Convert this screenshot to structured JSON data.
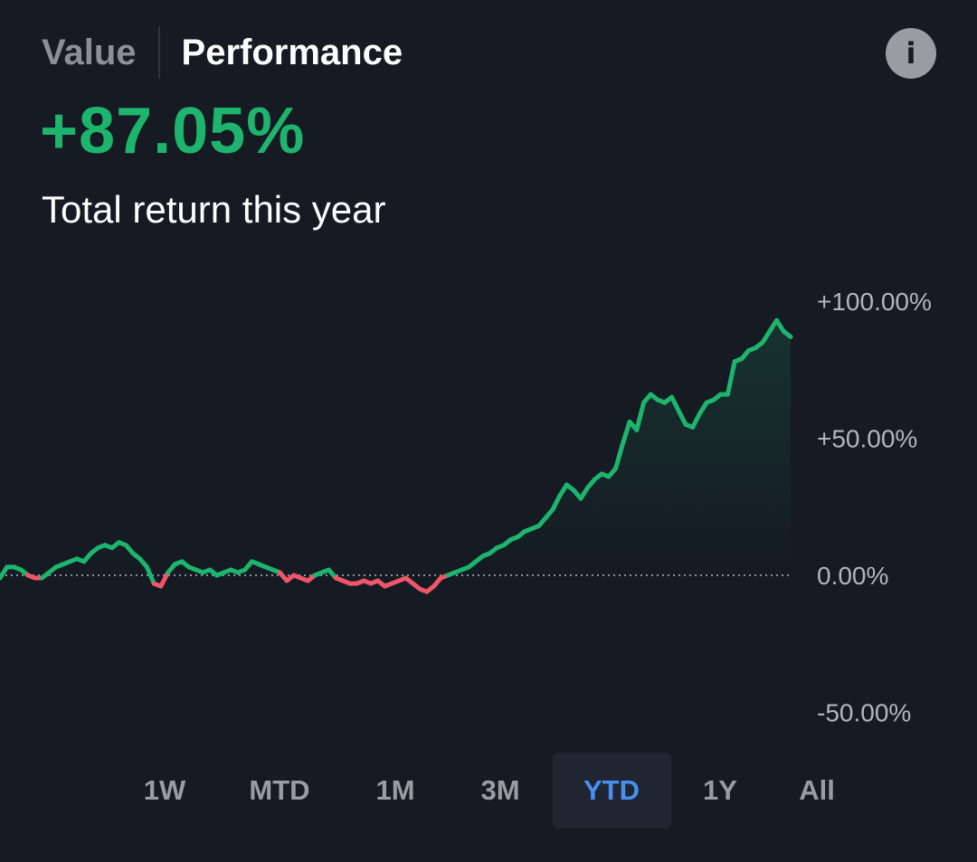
{
  "tabs": {
    "value_label": "Value",
    "performance_label": "Performance"
  },
  "info_label": "i",
  "headline": {
    "value": "+87.05%",
    "subtitle": "Total return this year"
  },
  "colors": {
    "positive": "#1db56e",
    "negative": "#f0566a",
    "accent": "#4a8ff0",
    "background": "#151a23"
  },
  "chart_data": {
    "type": "line",
    "title": "",
    "xlabel": "",
    "ylabel": "",
    "ylim": [
      -50,
      100
    ],
    "y_ticks": [
      100,
      50,
      0,
      -50
    ],
    "y_tick_labels": [
      "+100.00%",
      "+50.00%",
      "0.00%",
      "-50.00%"
    ],
    "baseline": 0,
    "grid": false,
    "series": [
      {
        "values": [
          -1,
          3,
          3,
          2,
          0,
          -1,
          -1,
          1,
          3,
          4,
          5,
          6,
          5,
          8,
          10,
          11,
          10,
          12,
          11,
          8,
          6,
          3,
          -3,
          -4,
          1,
          4,
          5,
          3,
          2,
          1,
          2,
          0,
          1,
          2,
          1,
          2,
          5,
          4,
          3,
          2,
          1,
          -2,
          0,
          -1,
          -2,
          0,
          1,
          2,
          -1,
          -2,
          -3,
          -3,
          -2,
          -3,
          -2,
          -4,
          -3,
          -2,
          -1,
          -3,
          -5,
          -6,
          -4,
          -1,
          0,
          1,
          2,
          3,
          5,
          7,
          8,
          10,
          11,
          13,
          14,
          16,
          17,
          18,
          21,
          24,
          29,
          33,
          31,
          28,
          32,
          35,
          37,
          36,
          39,
          48,
          56,
          53,
          63,
          66,
          64,
          63,
          65,
          60,
          55,
          54,
          59,
          63,
          64,
          66,
          66,
          78,
          79,
          82,
          83,
          85,
          89,
          93,
          89,
          87
        ]
      }
    ]
  },
  "ranges": [
    "1W",
    "MTD",
    "1M",
    "3M",
    "YTD",
    "1Y",
    "All"
  ],
  "active_range": "YTD"
}
